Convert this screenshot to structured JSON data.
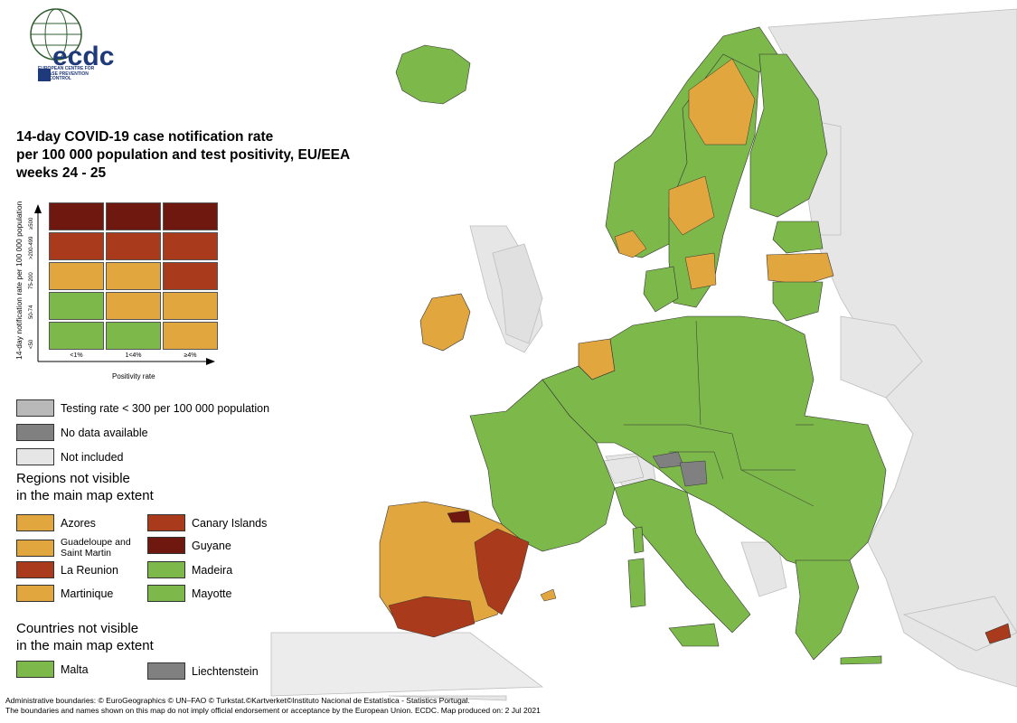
{
  "title_lines": [
    "14-day COVID-19 case notification rate",
    "per 100 000 population and test positivity, EU/EEA",
    "weeks 24 - 25"
  ],
  "logo": {
    "text": "ecdc",
    "subtitle_lines": [
      "EUROPEAN CENTRE FOR",
      "DISEASE PREVENTION",
      "AND CONTROL"
    ]
  },
  "colors": {
    "dark_red": "#6e1810",
    "red": "#a93a1c",
    "orange": "#e2a63f",
    "green": "#7cb84a",
    "light_grey": "#b9b9b9",
    "dark_grey": "#808080",
    "not_included": "#e6e6e6",
    "sea": "#ffffff",
    "border": "#333333"
  },
  "matrix": {
    "y_axis_label": "14-day notification rate per 100 000 population",
    "x_axis_label": "Positivity rate",
    "rows": [
      "≥500",
      ">200-499",
      "75-200",
      "50-74",
      "<50"
    ],
    "cols": [
      "<1%",
      "1<4%",
      "≥4%"
    ],
    "cells": [
      [
        "dark_red",
        "dark_red",
        "dark_red"
      ],
      [
        "red",
        "red",
        "red"
      ],
      [
        "orange",
        "orange",
        "red"
      ],
      [
        "green",
        "orange",
        "orange"
      ],
      [
        "green",
        "green",
        "orange"
      ]
    ]
  },
  "legend": [
    {
      "label": "Testing rate < 300 per 100 000 population",
      "color": "light_grey"
    },
    {
      "label": "No data available",
      "color": "dark_grey"
    },
    {
      "label": "Not included",
      "color": "not_included"
    }
  ],
  "regions_title_lines": [
    "Regions not visible",
    "in the main map extent"
  ],
  "regions": [
    {
      "label": "Azores",
      "color": "orange"
    },
    {
      "label": "Guadeloupe and Saint Martin",
      "color": "orange"
    },
    {
      "label": "La Reunion",
      "color": "red"
    },
    {
      "label": "Martinique",
      "color": "orange"
    },
    {
      "label": "Canary Islands",
      "color": "red"
    },
    {
      "label": "Guyane",
      "color": "dark_red"
    },
    {
      "label": "Madeira",
      "color": "green"
    },
    {
      "label": "Mayotte",
      "color": "green"
    }
  ],
  "countries_title_lines": [
    "Countries not visible",
    "in the main map extent"
  ],
  "countries": [
    {
      "label": "Malta",
      "color": "green"
    },
    {
      "label": "Liechtenstein",
      "color": "dark_grey"
    }
  ],
  "footer_lines": [
    "Administrative boundaries: © EuroGeographics © UN–FAO © Turkstat.©Kartverket©Instituto Nacional de Estatística - Statistics Portugal.",
    "The boundaries and names shown on this map do not imply official endorsement or acceptance by the European Union. ECDC. Map produced on: 2 Jul 2021"
  ]
}
